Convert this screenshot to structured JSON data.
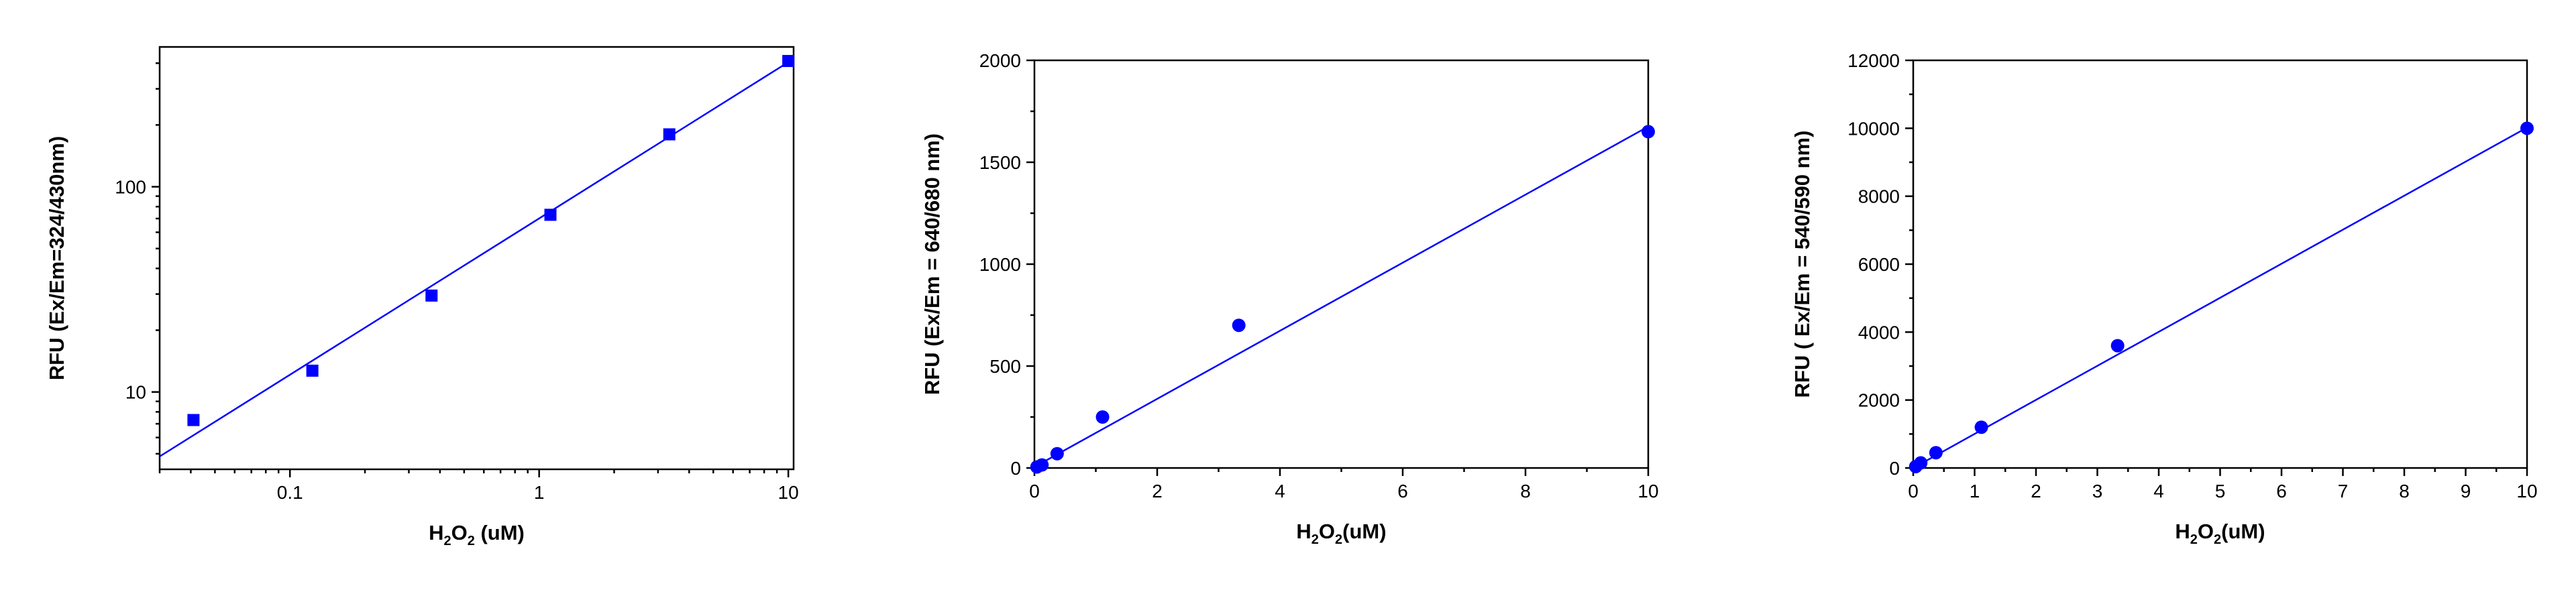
{
  "chart_data": [
    {
      "type": "scatter",
      "xscale": "log",
      "yscale": "log",
      "xlim": [
        0.03,
        10.5
      ],
      "ylim": [
        4.2,
        480
      ],
      "xticks": [
        0.1,
        1,
        10
      ],
      "xtick_labels": [
        "0.1",
        "1",
        "10"
      ],
      "yticks": [
        10,
        100
      ],
      "ytick_labels": [
        "10",
        "100"
      ],
      "xlabel_parts": [
        "H",
        "2",
        "O",
        "2",
        "  (uM)"
      ],
      "ylabel": "RFU (Ex/Em=324/430nm)",
      "marker": "square",
      "color": "#0000ff",
      "series": [
        {
          "x": [
            0.041,
            0.123,
            0.37,
            1.11,
            3.33,
            10
          ],
          "y": [
            7.3,
            12.7,
            29.5,
            73,
            180,
            410
          ]
        }
      ],
      "fit_line": {
        "x": [
          0.03,
          10.5
        ],
        "y": [
          4.85,
          420
        ]
      }
    },
    {
      "type": "scatter",
      "xlim": [
        0,
        10
      ],
      "ylim": [
        0,
        2000
      ],
      "xticks": [
        0,
        2,
        4,
        6,
        8,
        10
      ],
      "xtick_labels": [
        "0",
        "2",
        "4",
        "6",
        "8",
        "10"
      ],
      "yticks": [
        0,
        500,
        1000,
        1500,
        2000
      ],
      "ytick_labels": [
        "0",
        "500",
        "1000",
        "1500",
        "2000"
      ],
      "xlabel_parts": [
        "H",
        "2",
        "O",
        "2",
        "(uM)"
      ],
      "ylabel": "RFU (Ex/Em = 640/680 nm)",
      "marker": "circle",
      "color": "#0000ff",
      "series": [
        {
          "x": [
            0.041,
            0.123,
            0.37,
            1.11,
            3.33,
            10
          ],
          "y": [
            5,
            15,
            70,
            250,
            700,
            1650
          ]
        }
      ],
      "fit_line": {
        "x": [
          0,
          10
        ],
        "y": [
          5,
          1675
        ]
      }
    },
    {
      "type": "scatter",
      "xlim": [
        0,
        10
      ],
      "ylim": [
        0,
        12000
      ],
      "xticks": [
        0,
        1,
        2,
        3,
        4,
        5,
        6,
        7,
        8,
        9,
        10
      ],
      "xtick_labels": [
        "0",
        "1",
        "2",
        "3",
        "4",
        "5",
        "6",
        "7",
        "8",
        "9",
        "10"
      ],
      "yticks": [
        0,
        2000,
        4000,
        6000,
        8000,
        10000,
        12000
      ],
      "ytick_labels": [
        "0",
        "2000",
        "4000",
        "6000",
        "8000",
        "10000",
        "12000"
      ],
      "xlabel_parts": [
        "H",
        "2",
        "O",
        "2",
        "(uM)"
      ],
      "ylabel": "RFU ( Ex/Em = 540/590 nm)",
      "marker": "circle",
      "color": "#0000ff",
      "series": [
        {
          "x": [
            0.041,
            0.123,
            0.37,
            1.11,
            3.33,
            10
          ],
          "y": [
            40,
            150,
            450,
            1200,
            3600,
            10000
          ]
        }
      ],
      "fit_line": {
        "x": [
          0,
          10
        ],
        "y": [
          0,
          10020
        ]
      }
    }
  ]
}
